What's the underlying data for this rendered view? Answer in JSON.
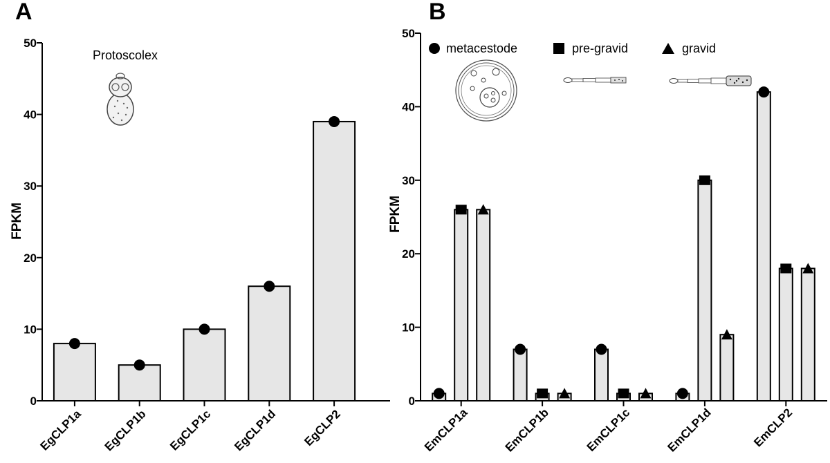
{
  "chart_data": [
    {
      "panel": "A",
      "type": "bar",
      "ylabel": "FPKM",
      "xlabel": "",
      "ylim": [
        0,
        50
      ],
      "yticks": [
        0,
        10,
        20,
        30,
        40,
        50
      ],
      "annotation": "Protoscolex",
      "categories": [
        "EgCLP1a",
        "EgCLP1b",
        "EgCLP1c",
        "EgCLP1d",
        "EgCLP2"
      ],
      "series": [
        {
          "name": "Protoscolex",
          "marker": "circle",
          "values": [
            8,
            5,
            10,
            16,
            39
          ]
        }
      ],
      "bar_color": "#e6e6e6",
      "marker_color": "#000000"
    },
    {
      "panel": "B",
      "type": "bar",
      "ylabel": "FPKM",
      "xlabel": "",
      "ylim": [
        0,
        50
      ],
      "yticks": [
        0,
        10,
        20,
        30,
        40,
        50
      ],
      "categories": [
        "EmCLP1a",
        "EmCLP1b",
        "EmCLP1c",
        "EmCLP1d",
        "EmCLP2"
      ],
      "series": [
        {
          "name": "metacestode",
          "marker": "circle",
          "values": [
            1,
            7,
            7,
            1,
            42
          ]
        },
        {
          "name": "pre-gravid",
          "marker": "square",
          "values": [
            26,
            1,
            1,
            30,
            18
          ]
        },
        {
          "name": "gravid",
          "marker": "triangle",
          "values": [
            26,
            1,
            1,
            9,
            18
          ]
        }
      ],
      "legend_position": "top",
      "bar_color": "#e6e6e6",
      "marker_color": "#000000"
    }
  ]
}
